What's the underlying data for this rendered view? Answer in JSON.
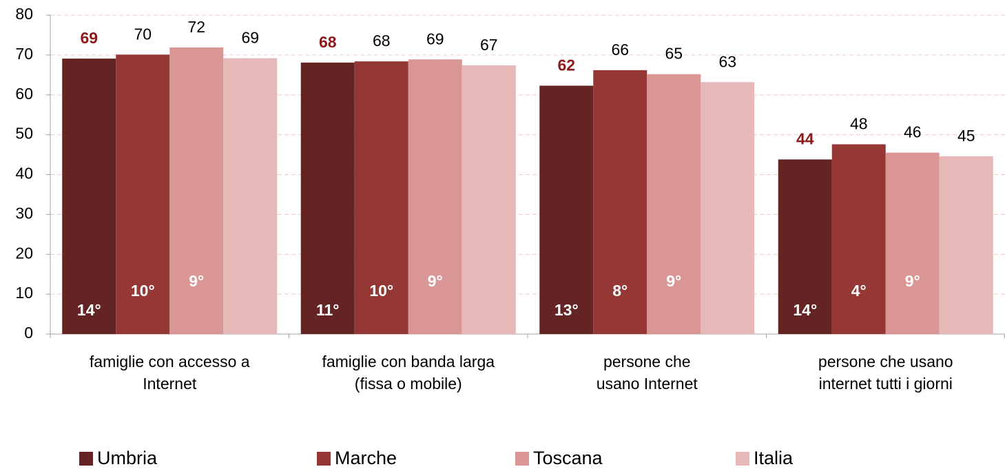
{
  "chart_data": {
    "type": "bar",
    "categories": [
      [
        "famiglie con accesso a",
        "Internet"
      ],
      [
        "famiglie con banda larga",
        "(fissa o mobile)"
      ],
      [
        "persone che",
        "usano Internet"
      ],
      [
        "persone che usano",
        "internet tutti i giorni"
      ]
    ],
    "series": [
      {
        "name": "Umbria",
        "color": "#632423",
        "label_color": "#8b1a1a",
        "label_bold": true,
        "values": [
          69.1,
          68.1,
          62.3,
          43.8
        ],
        "value_labels": [
          "69",
          "68",
          "62",
          "44"
        ],
        "ranks": [
          "14°",
          "11°",
          "13°",
          "14°"
        ]
      },
      {
        "name": "Marche",
        "color": "#953735",
        "label_color": "#000000",
        "label_bold": false,
        "values": [
          70.1,
          68.4,
          66.2,
          47.6
        ],
        "value_labels": [
          "70",
          "68",
          "66",
          "48"
        ],
        "ranks": [
          "10°",
          "10°",
          "8°",
          "4°"
        ]
      },
      {
        "name": "Toscana",
        "color": "#d99694",
        "label_color": "#000000",
        "label_bold": false,
        "values": [
          71.9,
          68.9,
          65.2,
          45.5
        ],
        "value_labels": [
          "72",
          "69",
          "65",
          "46"
        ],
        "ranks": [
          "9°",
          "9°",
          "9°",
          "9°"
        ]
      },
      {
        "name": "Italia",
        "color": "#e6b9b8",
        "label_color": "#000000",
        "label_bold": false,
        "values": [
          69.2,
          67.4,
          63.2,
          44.6
        ],
        "value_labels": [
          "69",
          "67",
          "63",
          "45"
        ]
      }
    ],
    "ylim": [
      0,
      80
    ],
    "yticks": [
      0,
      10,
      20,
      30,
      40,
      50,
      60,
      70,
      80
    ],
    "grid": true,
    "legend": "bottom"
  }
}
